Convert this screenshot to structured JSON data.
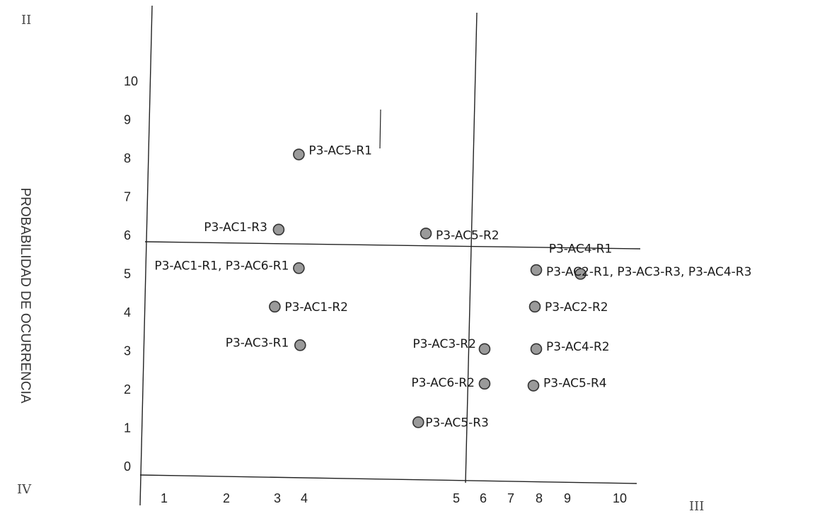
{
  "chart_data": {
    "type": "scatter",
    "ylabel": "PROBABILIDAD DE OCURRENCIA",
    "xlabel": "",
    "quadrants": {
      "top_left": "II",
      "bottom_left": "IV",
      "bottom_right": "III"
    },
    "x_ticks": [
      1,
      2,
      3,
      4,
      5,
      6,
      7,
      8,
      9,
      10
    ],
    "y_ticks": [
      0,
      1,
      2,
      3,
      4,
      5,
      6,
      7,
      8,
      9,
      10
    ],
    "divider_lines": {
      "horizontal_y": 5.75,
      "vertical_x": 5.4
    },
    "points": [
      {
        "x": 3.8,
        "y": 8.1,
        "label": "P3-AC5-R1"
      },
      {
        "x": 3.05,
        "y": 6.15,
        "label": "P3-AC1-R3"
      },
      {
        "x": 4.8,
        "y": 6.05,
        "label": "P3-AC5-R2"
      },
      {
        "x": 3.8,
        "y": 5.15,
        "label": "P3-AC1-R1, P3-AC6-R1"
      },
      {
        "x": 7.9,
        "y": 5.1,
        "label": "P3-AC2-R1, P3-AC3-R3, P3-AC4-R3"
      },
      {
        "x": 9.25,
        "y": 5.0,
        "label": "P3-AC4-R1"
      },
      {
        "x": 2.95,
        "y": 4.15,
        "label": "P3-AC1-R2"
      },
      {
        "x": 7.85,
        "y": 4.15,
        "label": "P3-AC2-R2"
      },
      {
        "x": 3.85,
        "y": 3.15,
        "label": "P3-AC3-R1"
      },
      {
        "x": 6.05,
        "y": 3.05,
        "label": "P3-AC3-R2"
      },
      {
        "x": 7.9,
        "y": 3.05,
        "label": "P3-AC4-R2"
      },
      {
        "x": 6.05,
        "y": 2.15,
        "label": "P3-AC6-R2"
      },
      {
        "x": 7.8,
        "y": 2.1,
        "label": "P3-AC5-R4"
      },
      {
        "x": 4.75,
        "y": 1.15,
        "label": "P3-AC5-R3"
      }
    ]
  }
}
